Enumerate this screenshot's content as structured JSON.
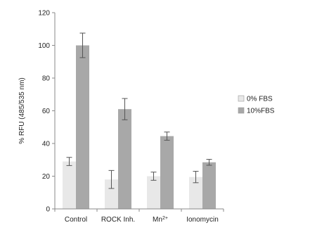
{
  "chart_data": {
    "type": "bar",
    "ylabel": "% RFU (485/535 nm)",
    "ylim": [
      0,
      120
    ],
    "yticks": [
      0,
      20,
      40,
      60,
      80,
      100,
      120
    ],
    "categories": [
      {
        "label": "Control"
      },
      {
        "label": "ROCK Inh."
      },
      {
        "label": "Mn",
        "sup": "2+"
      },
      {
        "label": "Ionomycin"
      }
    ],
    "series": [
      {
        "name": "0% FBS",
        "color": "#e8e8e8",
        "values": [
          29,
          18,
          20,
          19.5
        ],
        "errors": [
          2.5,
          5.5,
          2.5,
          3.5
        ]
      },
      {
        "name": "10%FBS",
        "color": "#a8a8a8",
        "values": [
          100,
          61,
          44.5,
          28.5
        ],
        "errors": [
          7.5,
          6.5,
          2.5,
          1.8
        ]
      }
    ],
    "legend_position": "right",
    "grid": false
  }
}
